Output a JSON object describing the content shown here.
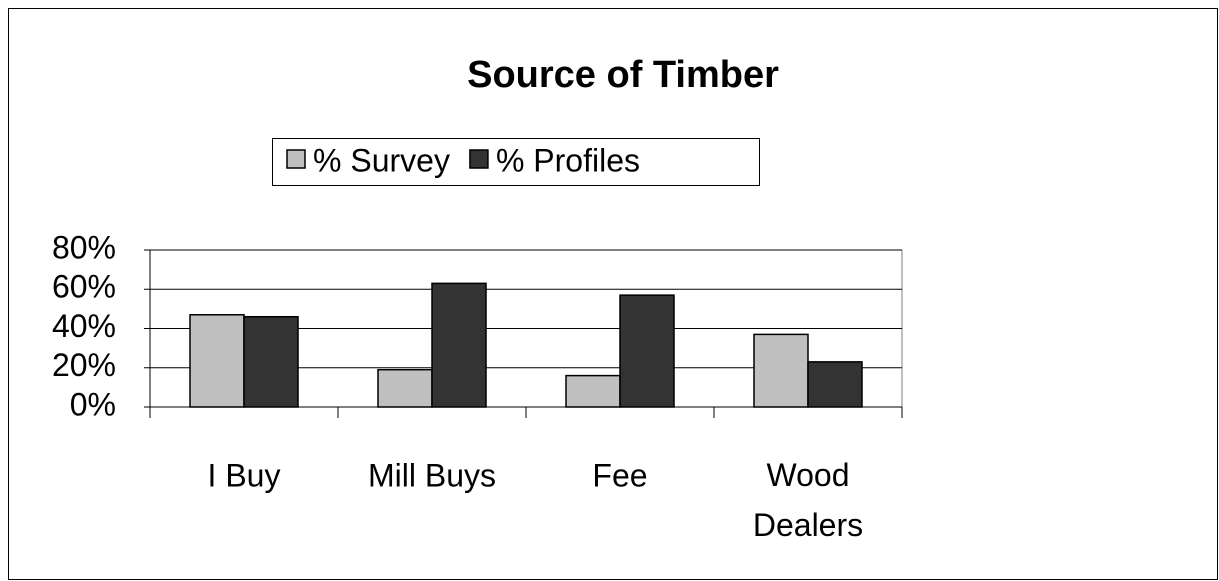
{
  "chart_data": {
    "type": "bar",
    "title": "Source of Timber",
    "categories": [
      "I Buy",
      "Mill Buys",
      "Fee",
      "Wood Dealers"
    ],
    "series": [
      {
        "name": "% Survey",
        "color": "#c0c0c0",
        "values": [
          47,
          19,
          16,
          37
        ]
      },
      {
        "name": "% Profiles",
        "color": "#333333",
        "values": [
          46,
          63,
          57,
          23
        ]
      }
    ],
    "ylim": [
      0,
      80
    ],
    "yticks": [
      {
        "value": 0,
        "label": "0%"
      },
      {
        "value": 20,
        "label": "20%"
      },
      {
        "value": 40,
        "label": "40%"
      },
      {
        "value": 60,
        "label": "60%"
      },
      {
        "value": 80,
        "label": "80%"
      }
    ],
    "grid": true,
    "legend": "top"
  }
}
